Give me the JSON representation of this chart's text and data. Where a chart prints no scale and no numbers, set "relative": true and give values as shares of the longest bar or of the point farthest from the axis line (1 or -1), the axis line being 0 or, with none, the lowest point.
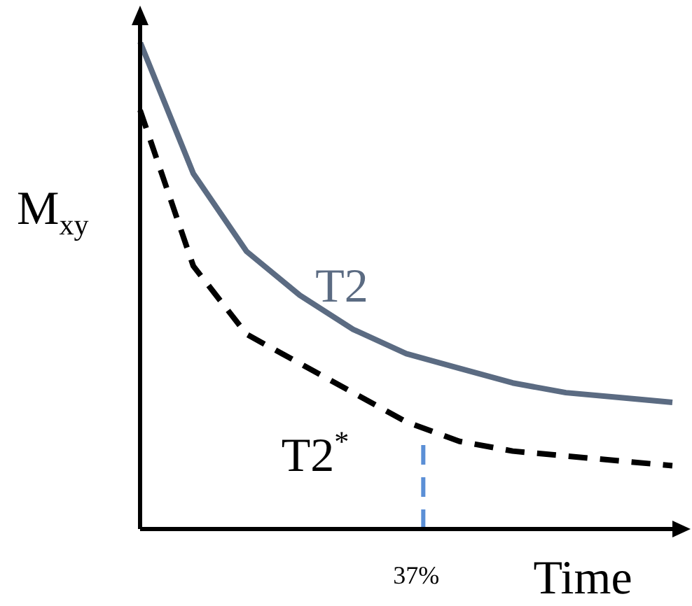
{
  "chart_data": {
    "type": "line",
    "relative": true,
    "ylabel": "M$_{xy}$",
    "xlabel": "Time",
    "categories": [
      null,
      null,
      null,
      null,
      null,
      null,
      null,
      null,
      null,
      null,
      null
    ],
    "series": [
      {
        "name": "T2",
        "color": "#5b6b82",
        "line_style": "solid",
        "values": [
          1.0,
          0.73,
          0.57,
          0.48,
          0.41,
          0.36,
          0.33,
          0.3,
          0.28,
          0.27,
          0.26
        ]
      },
      {
        "name": "T2$^{*}$",
        "color": "#000000",
        "line_style": "dashed",
        "values": [
          0.86,
          0.54,
          0.4,
          0.34,
          0.28,
          0.22,
          0.18,
          0.16,
          0.15,
          0.14,
          0.13
        ]
      }
    ],
    "annotations": [
      "37%"
    ]
  }
}
